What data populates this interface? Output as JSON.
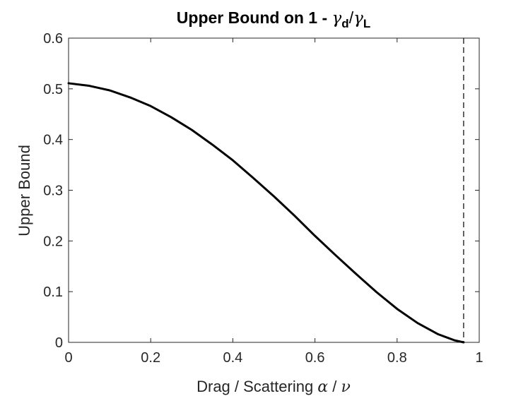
{
  "chart_data": {
    "type": "line",
    "title": {
      "prefix": "Upper Bound on 1 - ",
      "sym_num": "γ",
      "sub_num": "d",
      "slash": "/",
      "sym_den": "γ",
      "sub_den": "L"
    },
    "xlabel": {
      "text": "Drag / Scattering ",
      "sym_a": "α",
      "slash": " / ",
      "sym_b": "ν"
    },
    "ylabel": "Upper Bound",
    "xlim": [
      0,
      1
    ],
    "ylim": [
      0,
      0.6
    ],
    "xticks": [
      0,
      0.2,
      0.4,
      0.6,
      0.8,
      1
    ],
    "xtick_labels": [
      "0",
      "0.2",
      "0.4",
      "0.6",
      "0.8",
      "1"
    ],
    "yticks": [
      0,
      0.1,
      0.2,
      0.3,
      0.4,
      0.5,
      0.6
    ],
    "ytick_labels": [
      "0",
      "0.1",
      "0.2",
      "0.3",
      "0.4",
      "0.5",
      "0.6"
    ],
    "grid": false,
    "series": [
      {
        "style": "solid",
        "color": "#000000",
        "x": [
          0,
          0.05,
          0.1,
          0.15,
          0.2,
          0.25,
          0.3,
          0.35,
          0.4,
          0.45,
          0.5,
          0.55,
          0.6,
          0.65,
          0.7,
          0.75,
          0.8,
          0.85,
          0.9,
          0.94,
          0.962
        ],
        "y": [
          0.511,
          0.506,
          0.497,
          0.483,
          0.466,
          0.444,
          0.419,
          0.39,
          0.359,
          0.324,
          0.288,
          0.25,
          0.21,
          0.172,
          0.135,
          0.099,
          0.066,
          0.038,
          0.016,
          0.004,
          0
        ]
      }
    ],
    "vline": {
      "x": 0.962,
      "style": "dashed",
      "color": "#000000"
    }
  }
}
